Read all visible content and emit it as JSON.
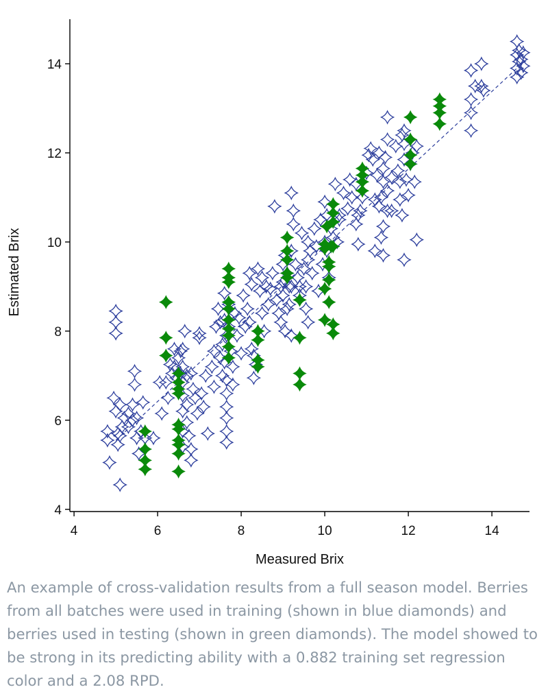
{
  "chart_data": {
    "type": "scatter",
    "title": "",
    "xlabel": "Measured Brix",
    "ylabel": "Estimated Brix",
    "xlim": [
      3.9,
      14.9
    ],
    "ylim": [
      3.95,
      15.0
    ],
    "xticks": [
      4,
      6,
      8,
      10,
      12,
      14
    ],
    "yticks": [
      4,
      6,
      8,
      10,
      12,
      14
    ],
    "grid": false,
    "series": [
      {
        "name": "training",
        "marker": "open-diamond-star",
        "color": "#2b3d9c",
        "points": [
          [
            4.8,
            5.75
          ],
          [
            4.8,
            5.55
          ],
          [
            4.85,
            5.05
          ],
          [
            4.95,
            6.5
          ],
          [
            5.0,
            6.2
          ],
          [
            5.0,
            8.45
          ],
          [
            5.0,
            8.2
          ],
          [
            5.0,
            7.95
          ],
          [
            5.05,
            5.7
          ],
          [
            5.05,
            5.45
          ],
          [
            5.1,
            6.35
          ],
          [
            5.1,
            4.55
          ],
          [
            5.1,
            5.65
          ],
          [
            5.15,
            5.85
          ],
          [
            5.2,
            6.05
          ],
          [
            5.3,
            5.85
          ],
          [
            5.3,
            6.15
          ],
          [
            5.4,
            6.0
          ],
          [
            5.4,
            6.35
          ],
          [
            5.45,
            7.1
          ],
          [
            5.45,
            6.8
          ],
          [
            5.5,
            6.05
          ],
          [
            5.5,
            5.6
          ],
          [
            5.55,
            5.25
          ],
          [
            5.6,
            5.75
          ],
          [
            5.65,
            6.4
          ],
          [
            5.7,
            5.6
          ],
          [
            5.9,
            5.6
          ],
          [
            6.05,
            6.85
          ],
          [
            6.1,
            6.15
          ],
          [
            6.2,
            6.85
          ],
          [
            6.25,
            6.5
          ],
          [
            6.3,
            7.25
          ],
          [
            6.35,
            7.05
          ],
          [
            6.4,
            7.6
          ],
          [
            6.4,
            7.2
          ],
          [
            6.45,
            6.95
          ],
          [
            6.5,
            7.4
          ],
          [
            6.55,
            7.55
          ],
          [
            6.55,
            7.05
          ],
          [
            6.6,
            7.6
          ],
          [
            6.6,
            7.2
          ],
          [
            6.6,
            6.85
          ],
          [
            6.6,
            6.55
          ],
          [
            6.6,
            6.2
          ],
          [
            6.6,
            5.75
          ],
          [
            6.6,
            5.4
          ],
          [
            6.65,
            8.0
          ],
          [
            6.7,
            7.0
          ],
          [
            6.7,
            6.35
          ],
          [
            6.7,
            5.95
          ],
          [
            6.75,
            5.65
          ],
          [
            6.8,
            5.35
          ],
          [
            6.8,
            5.1
          ],
          [
            6.8,
            7.05
          ],
          [
            6.85,
            6.7
          ],
          [
            6.9,
            6.5
          ],
          [
            6.95,
            6.15
          ],
          [
            7.0,
            7.95
          ],
          [
            7.0,
            7.85
          ],
          [
            7.05,
            6.6
          ],
          [
            7.1,
            6.3
          ],
          [
            7.15,
            7.0
          ],
          [
            7.2,
            5.7
          ],
          [
            7.3,
            7.2
          ],
          [
            7.35,
            6.75
          ],
          [
            7.35,
            7.55
          ],
          [
            7.4,
            8.1
          ],
          [
            7.45,
            8.5
          ],
          [
            7.5,
            8.2
          ],
          [
            7.5,
            7.4
          ],
          [
            7.55,
            7.0
          ],
          [
            7.55,
            7.7
          ],
          [
            7.6,
            8.25
          ],
          [
            7.6,
            8.85
          ],
          [
            7.6,
            7.3
          ],
          [
            7.65,
            7.9
          ],
          [
            7.65,
            6.9
          ],
          [
            7.65,
            6.6
          ],
          [
            7.65,
            6.3
          ],
          [
            7.65,
            6.05
          ],
          [
            7.65,
            5.75
          ],
          [
            7.65,
            5.5
          ],
          [
            7.7,
            8.6
          ],
          [
            7.7,
            8.1
          ],
          [
            7.75,
            7.55
          ],
          [
            7.8,
            7.2
          ],
          [
            7.8,
            6.8
          ],
          [
            7.85,
            8.4
          ],
          [
            7.9,
            7.9
          ],
          [
            7.95,
            8.3
          ],
          [
            8.0,
            7.5
          ],
          [
            8.05,
            8.8
          ],
          [
            8.1,
            8.1
          ],
          [
            8.15,
            8.5
          ],
          [
            8.2,
            8.2
          ],
          [
            8.2,
            9.3
          ],
          [
            8.25,
            9.05
          ],
          [
            8.25,
            7.6
          ],
          [
            8.3,
            7.45
          ],
          [
            8.3,
            6.95
          ],
          [
            8.35,
            7.25
          ],
          [
            8.4,
            9.4
          ],
          [
            8.45,
            8.9
          ],
          [
            8.5,
            8.4
          ],
          [
            8.5,
            9.2
          ],
          [
            8.55,
            8.0
          ],
          [
            8.6,
            9.0
          ],
          [
            8.65,
            8.6
          ],
          [
            8.7,
            8.95
          ],
          [
            8.75,
            9.3
          ],
          [
            8.8,
            10.8
          ],
          [
            8.85,
            8.7
          ],
          [
            8.9,
            8.4
          ],
          [
            8.95,
            9.0
          ],
          [
            8.95,
            8.2
          ],
          [
            9.0,
            9.5
          ],
          [
            9.0,
            9.1
          ],
          [
            9.0,
            8.8
          ],
          [
            9.05,
            9.7
          ],
          [
            9.05,
            8.0
          ],
          [
            9.1,
            8.5
          ],
          [
            9.1,
            9.3
          ],
          [
            9.15,
            9.0
          ],
          [
            9.15,
            8.6
          ],
          [
            9.2,
            9.8
          ],
          [
            9.2,
            9.0
          ],
          [
            9.2,
            7.9
          ],
          [
            9.2,
            11.1
          ],
          [
            9.25,
            10.7
          ],
          [
            9.25,
            10.4
          ],
          [
            9.3,
            9.5
          ],
          [
            9.35,
            9.2
          ],
          [
            9.4,
            8.8
          ],
          [
            9.4,
            9.0
          ],
          [
            9.45,
            10.2
          ],
          [
            9.5,
            9.4
          ],
          [
            9.55,
            9.0
          ],
          [
            9.55,
            8.5
          ],
          [
            9.6,
            10.0
          ],
          [
            9.6,
            9.6
          ],
          [
            9.6,
            8.2
          ],
          [
            9.65,
            9.8
          ],
          [
            9.7,
            9.3
          ],
          [
            9.75,
            10.3
          ],
          [
            9.8,
            9.9
          ],
          [
            9.85,
            8.9
          ],
          [
            9.9,
            10.5
          ],
          [
            9.95,
            9.5
          ],
          [
            10.0,
            10.9
          ],
          [
            10.0,
            10.0
          ],
          [
            10.05,
            9.8
          ],
          [
            10.05,
            10.6
          ],
          [
            10.1,
            9.2
          ],
          [
            10.15,
            10.3
          ],
          [
            10.2,
            10.1
          ],
          [
            10.25,
            11.3
          ],
          [
            10.3,
            10.0
          ],
          [
            10.35,
            10.5
          ],
          [
            10.35,
            10.6
          ],
          [
            10.45,
            11.1
          ],
          [
            10.55,
            10.75
          ],
          [
            10.6,
            11.4
          ],
          [
            10.65,
            11.0
          ],
          [
            10.75,
            10.4
          ],
          [
            10.75,
            11.3
          ],
          [
            10.8,
            9.95
          ],
          [
            10.8,
            10.6
          ],
          [
            10.85,
            10.7
          ],
          [
            10.9,
            11.0
          ],
          [
            11.0,
            11.55
          ],
          [
            11.05,
            11.95
          ],
          [
            11.1,
            12.1
          ],
          [
            11.15,
            11.85
          ],
          [
            11.2,
            10.95
          ],
          [
            11.2,
            9.8
          ],
          [
            11.25,
            11.5
          ],
          [
            11.3,
            10.8
          ],
          [
            11.3,
            12.0
          ],
          [
            11.35,
            11.0
          ],
          [
            11.35,
            10.1
          ],
          [
            11.4,
            11.65
          ],
          [
            11.4,
            11.35
          ],
          [
            11.4,
            10.35
          ],
          [
            11.4,
            9.7
          ],
          [
            11.45,
            11.9
          ],
          [
            11.5,
            11.15
          ],
          [
            11.5,
            12.3
          ],
          [
            11.5,
            10.7
          ],
          [
            11.5,
            12.8
          ],
          [
            11.6,
            11.45
          ],
          [
            11.6,
            10.7
          ],
          [
            11.7,
            12.15
          ],
          [
            11.75,
            11.6
          ],
          [
            11.8,
            10.95
          ],
          [
            11.8,
            11.35
          ],
          [
            11.85,
            12.4
          ],
          [
            11.85,
            10.6
          ],
          [
            11.9,
            11.85
          ],
          [
            11.9,
            12.5
          ],
          [
            11.9,
            12.2
          ],
          [
            11.9,
            9.6
          ],
          [
            11.95,
            11.4
          ],
          [
            12.0,
            11.05
          ],
          [
            12.05,
            11.75
          ],
          [
            12.1,
            12.0
          ],
          [
            12.15,
            11.35
          ],
          [
            12.2,
            12.15
          ],
          [
            12.2,
            10.05
          ],
          [
            13.5,
            13.2
          ],
          [
            13.5,
            12.9
          ],
          [
            13.5,
            12.5
          ],
          [
            13.5,
            13.85
          ],
          [
            13.6,
            13.5
          ],
          [
            13.75,
            14.0
          ],
          [
            13.75,
            13.5
          ],
          [
            13.8,
            13.4
          ],
          [
            14.6,
            14.5
          ],
          [
            14.6,
            14.2
          ],
          [
            14.6,
            13.9
          ],
          [
            14.6,
            13.7
          ],
          [
            14.65,
            14.3
          ],
          [
            14.65,
            14.05
          ],
          [
            14.7,
            13.8
          ],
          [
            14.7,
            14.1
          ],
          [
            14.75,
            14.25
          ],
          [
            14.75,
            13.95
          ]
        ]
      },
      {
        "name": "testing",
        "marker": "filled-diamond-star",
        "color": "#0a8a0a",
        "points": [
          [
            5.7,
            5.75
          ],
          [
            5.7,
            5.35
          ],
          [
            5.7,
            5.1
          ],
          [
            5.7,
            4.9
          ],
          [
            6.2,
            8.65
          ],
          [
            6.2,
            7.85
          ],
          [
            6.2,
            7.45
          ],
          [
            6.5,
            7.05
          ],
          [
            6.5,
            6.85
          ],
          [
            6.5,
            6.7
          ],
          [
            6.5,
            6.6
          ],
          [
            6.5,
            5.9
          ],
          [
            6.5,
            5.8
          ],
          [
            6.5,
            5.55
          ],
          [
            6.5,
            5.45
          ],
          [
            6.5,
            5.25
          ],
          [
            6.5,
            4.85
          ],
          [
            7.7,
            9.4
          ],
          [
            7.7,
            9.2
          ],
          [
            7.7,
            9.1
          ],
          [
            7.7,
            8.65
          ],
          [
            7.7,
            8.5
          ],
          [
            7.7,
            8.25
          ],
          [
            7.7,
            8.05
          ],
          [
            7.7,
            7.9
          ],
          [
            7.7,
            7.65
          ],
          [
            7.7,
            7.4
          ],
          [
            8.4,
            8.0
          ],
          [
            8.4,
            7.8
          ],
          [
            8.4,
            7.35
          ],
          [
            8.4,
            7.2
          ],
          [
            9.1,
            10.1
          ],
          [
            9.1,
            9.8
          ],
          [
            9.1,
            9.6
          ],
          [
            9.1,
            9.3
          ],
          [
            9.1,
            9.2
          ],
          [
            9.4,
            8.7
          ],
          [
            9.4,
            7.85
          ],
          [
            9.4,
            7.05
          ],
          [
            9.4,
            6.8
          ],
          [
            10.0,
            9.95
          ],
          [
            10.0,
            9.85
          ],
          [
            10.0,
            8.95
          ],
          [
            10.0,
            8.25
          ],
          [
            10.05,
            10.35
          ],
          [
            10.1,
            9.45
          ],
          [
            10.1,
            9.15
          ],
          [
            10.1,
            8.65
          ],
          [
            10.1,
            9.55
          ],
          [
            10.15,
            9.9
          ],
          [
            10.2,
            8.15
          ],
          [
            10.2,
            7.95
          ],
          [
            10.2,
            10.85
          ],
          [
            10.2,
            10.65
          ],
          [
            10.2,
            10.45
          ],
          [
            10.2,
            9.9
          ],
          [
            10.9,
            11.65
          ],
          [
            10.9,
            11.5
          ],
          [
            10.9,
            11.35
          ],
          [
            10.9,
            11.15
          ],
          [
            12.05,
            12.8
          ],
          [
            12.05,
            12.3
          ],
          [
            12.05,
            11.95
          ],
          [
            12.05,
            11.75
          ],
          [
            12.75,
            13.2
          ],
          [
            12.75,
            13.05
          ],
          [
            12.75,
            12.9
          ],
          [
            12.75,
            12.65
          ]
        ]
      }
    ],
    "regression_line": {
      "style": "dashed",
      "color": "#2b3d9c",
      "from": [
        5.0,
        5.55
      ],
      "to": [
        14.6,
        13.9
      ]
    },
    "caption": "An example of cross-validation results from a full season model. Berries from all batches were used in training (shown in blue diamonds) and berries used in testing (shown in green diamonds). The model showed to be strong in its predicting ability with a 0.882 training set regression color and a 2.08 RPD."
  }
}
